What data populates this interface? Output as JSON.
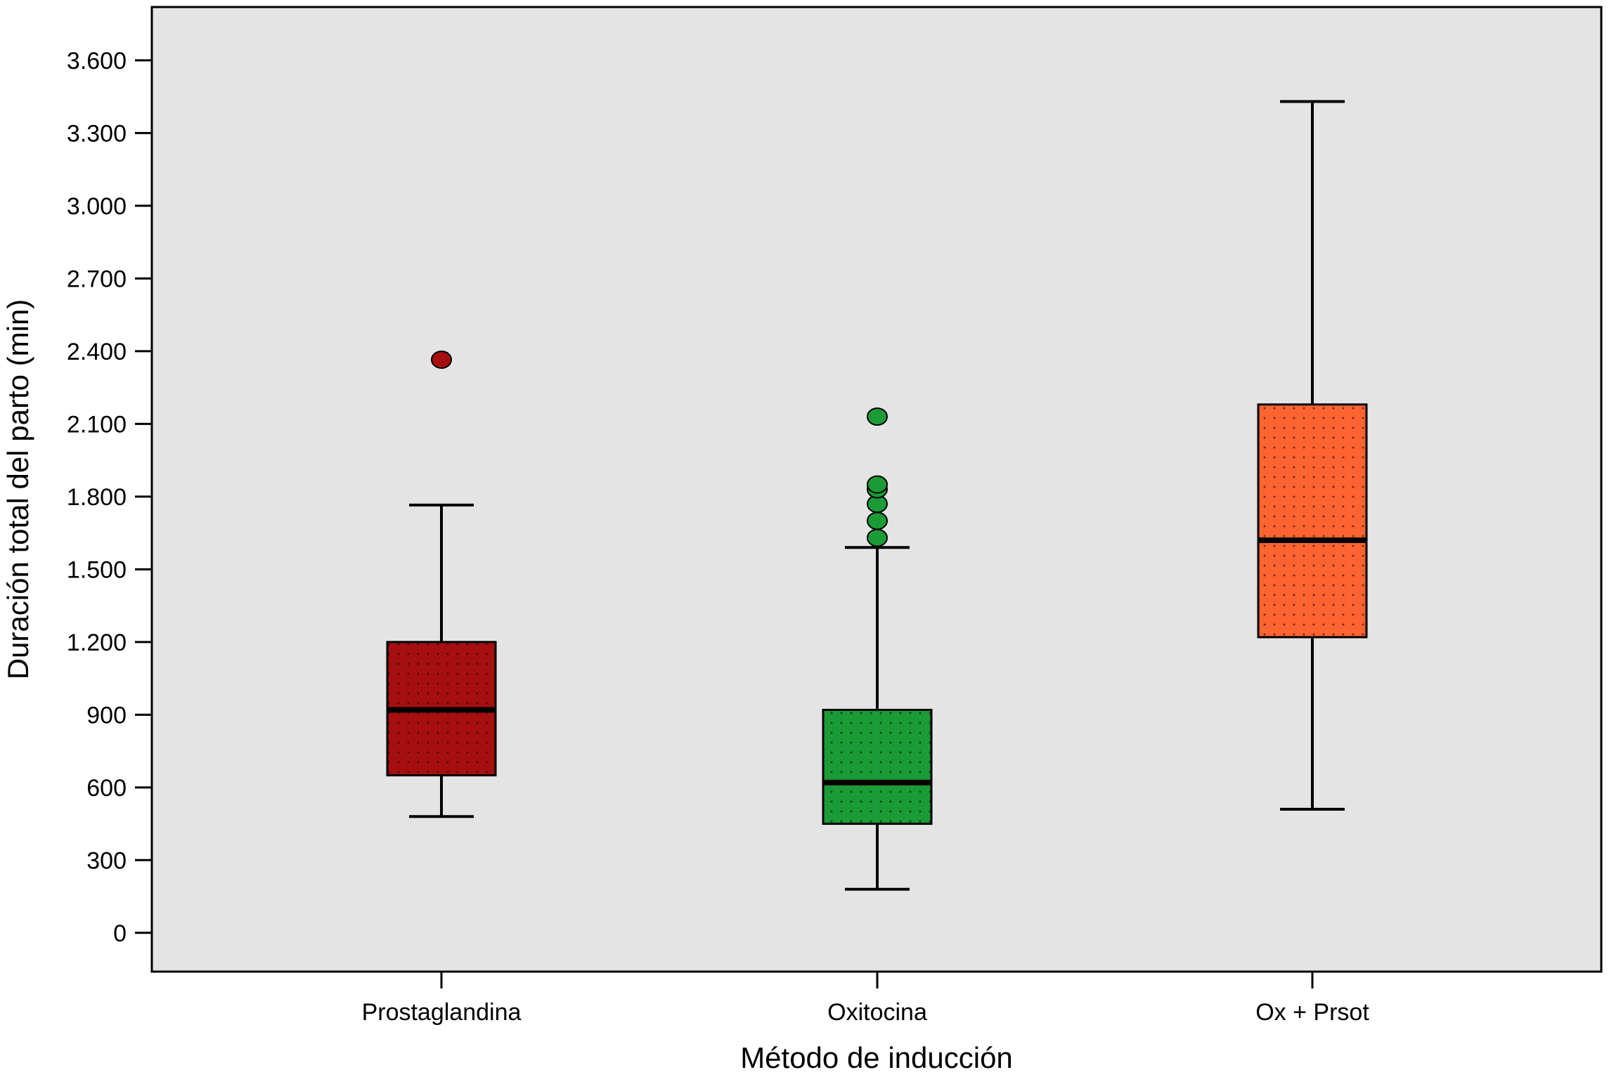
{
  "chart_data": {
    "type": "boxplot",
    "title": "",
    "xlabel": "Método de inducción",
    "ylabel": "Duración total del parto (min)",
    "ylim": [
      -160,
      3820
    ],
    "yticks": [
      0,
      300,
      600,
      900,
      1200,
      1500,
      1800,
      2100,
      2400,
      2700,
      3000,
      3300,
      3600
    ],
    "ytick_labels": [
      "0",
      "300",
      "600",
      "900",
      "1.200",
      "1.500",
      "1.800",
      "2.100",
      "2.400",
      "2.700",
      "3.000",
      "3.300",
      "3.600"
    ],
    "grid": false,
    "legend": "none",
    "background_color": "#e4e4e4",
    "categories": [
      "Prostaglandina",
      "Oxitocina",
      "Ox + Prsot"
    ],
    "boxes": [
      {
        "category": "Prostaglandina",
        "whisker_low": 480,
        "q1": 650,
        "median": 920,
        "q3": 1200,
        "whisker_high": 1765,
        "outliers": [
          2365
        ],
        "color": "#a50f0f"
      },
      {
        "category": "Oxitocina",
        "whisker_low": 180,
        "q1": 450,
        "median": 620,
        "q3": 920,
        "whisker_high": 1590,
        "outliers": [
          1630,
          1700,
          1770,
          1830,
          1850,
          2130
        ],
        "color": "#1a9b36"
      },
      {
        "category": "Ox + Prsot",
        "whisker_low": 510,
        "q1": 1220,
        "median": 1620,
        "q3": 2180,
        "whisker_high": 3430,
        "outliers": [],
        "color": "#fd6431"
      }
    ]
  }
}
